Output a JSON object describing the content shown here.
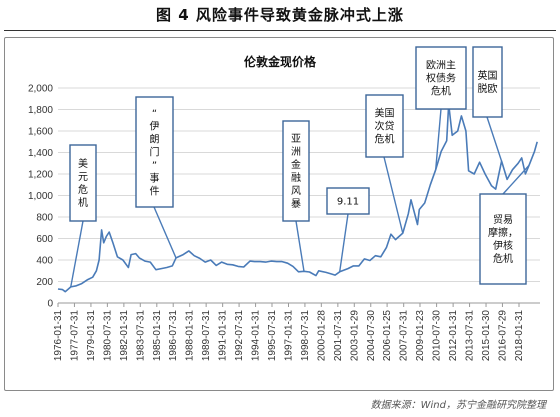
{
  "figure_title": "图 4   风险事件导致黄金脉冲式上涨",
  "source": "数据来源：Wind，苏宁金融研究院整理",
  "chart_data": {
    "type": "line",
    "title": "伦敦金现价格",
    "xlabel": "",
    "ylabel": "",
    "ylim": [
      0,
      2000
    ],
    "yticks": [
      0,
      200,
      400,
      600,
      800,
      1000,
      1200,
      1400,
      1600,
      1800,
      2000
    ],
    "ytick_labels": [
      "0",
      "200",
      "400",
      "600",
      "800",
      "1,000",
      "1,200",
      "1,400",
      "1,600",
      "1,800",
      "2,000"
    ],
    "xlim": [
      "1976-01-31",
      "2019-12-31"
    ],
    "xtick_labels": [
      "1976-01-31",
      "1977-07-31",
      "1979-01-31",
      "1980-07-31",
      "1982-01-31",
      "1983-07-31",
      "1985-01-31",
      "1986-07-31",
      "1988-01-31",
      "1989-07-31",
      "1991-01-31",
      "1992-07-31",
      "1994-01-31",
      "1995-07-31",
      "1997-01-31",
      "1998-07-31",
      "2000-01-28",
      "2001-07-31",
      "2003-01-29",
      "2004-07-30",
      "2006-01-25",
      "2007-07-31",
      "2009-01-23",
      "2010-07-30",
      "2012-01-31",
      "2013-07-31",
      "2015-01-30",
      "2016-07-29",
      "2018-01-31"
    ],
    "grid": true,
    "line_color": "#4a7bb8",
    "series": [
      {
        "name": "",
        "x": [
          "1976-01-31",
          "1976-06-30",
          "1976-09-30",
          "1977-03-31",
          "1977-09-30",
          "1978-03-31",
          "1978-09-30",
          "1979-03-31",
          "1979-07-31",
          "1979-10-31",
          "1980-01-21",
          "1980-03-31",
          "1980-06-30",
          "1980-09-30",
          "1981-01-31",
          "1981-06-30",
          "1981-12-31",
          "1982-06-30",
          "1982-09-30",
          "1983-02-28",
          "1983-06-30",
          "1983-12-31",
          "1984-06-30",
          "1984-12-31",
          "1985-06-30",
          "1985-12-31",
          "1986-06-30",
          "1986-10-31",
          "1987-06-30",
          "1987-12-31",
          "1988-06-30",
          "1988-12-31",
          "1989-06-30",
          "1989-12-31",
          "1990-06-30",
          "1990-12-31",
          "1991-06-30",
          "1991-12-31",
          "1992-06-30",
          "1992-12-31",
          "1993-07-31",
          "1993-12-31",
          "1994-06-30",
          "1994-12-31",
          "1995-06-30",
          "1995-12-31",
          "1996-06-30",
          "1996-12-31",
          "1997-06-30",
          "1997-12-31",
          "1998-06-30",
          "1998-12-31",
          "1999-07-31",
          "1999-10-31",
          "2000-06-30",
          "2000-12-31",
          "2001-04-30",
          "2001-09-30",
          "2002-06-30",
          "2002-12-31",
          "2003-06-30",
          "2003-12-31",
          "2004-06-30",
          "2004-12-31",
          "2005-06-30",
          "2005-12-31",
          "2006-05-31",
          "2006-10-31",
          "2007-06-30",
          "2007-12-31",
          "2008-03-31",
          "2008-10-31",
          "2008-12-31",
          "2009-06-30",
          "2009-12-31",
          "2010-06-30",
          "2010-12-31",
          "2011-06-30",
          "2011-09-05",
          "2011-12-31",
          "2012-06-30",
          "2012-10-31",
          "2013-03-31",
          "2013-06-30",
          "2013-12-31",
          "2014-06-30",
          "2014-12-31",
          "2015-07-31",
          "2015-12-17",
          "2016-06-30",
          "2016-12-31",
          "2017-06-30",
          "2017-12-31",
          "2018-04-30",
          "2018-08-31",
          "2018-12-31",
          "2019-06-30",
          "2019-09-30"
        ],
        "values": [
          130,
          125,
          105,
          150,
          160,
          180,
          215,
          240,
          300,
          400,
          680,
          560,
          620,
          660,
          560,
          430,
          400,
          330,
          450,
          460,
          420,
          390,
          380,
          310,
          320,
          330,
          345,
          420,
          450,
          485,
          440,
          415,
          380,
          400,
          350,
          380,
          360,
          355,
          340,
          335,
          390,
          385,
          385,
          380,
          390,
          385,
          385,
          370,
          340,
          290,
          295,
          288,
          255,
          300,
          285,
          270,
          260,
          290,
          320,
          345,
          345,
          410,
          395,
          440,
          430,
          515,
          640,
          590,
          650,
          830,
          960,
          730,
          870,
          930,
          1100,
          1240,
          1410,
          1510,
          1850,
          1560,
          1600,
          1740,
          1600,
          1230,
          1200,
          1310,
          1200,
          1090,
          1060,
          1320,
          1150,
          1240,
          1300,
          1350,
          1200,
          1280,
          1410,
          1500
        ]
      }
    ],
    "annotations": [
      {
        "label": "美元危机",
        "date": "1977-03-31"
      },
      {
        "label": "“伊朗门”事件",
        "date": "1986-10-31"
      },
      {
        "label": "亚洲金融风暴",
        "date": "1998-06-30"
      },
      {
        "label": "9.11",
        "date": "2001-09-30"
      },
      {
        "label": "美国次贷危机",
        "date": "2007-06-30"
      },
      {
        "label": "欧洲主权债务危机",
        "date": "2010-06-30"
      },
      {
        "label": "英国脱欧",
        "date": "2016-06-30"
      },
      {
        "label": "贸易摩擦，伊核危机",
        "date": "2018-12-31"
      }
    ]
  }
}
